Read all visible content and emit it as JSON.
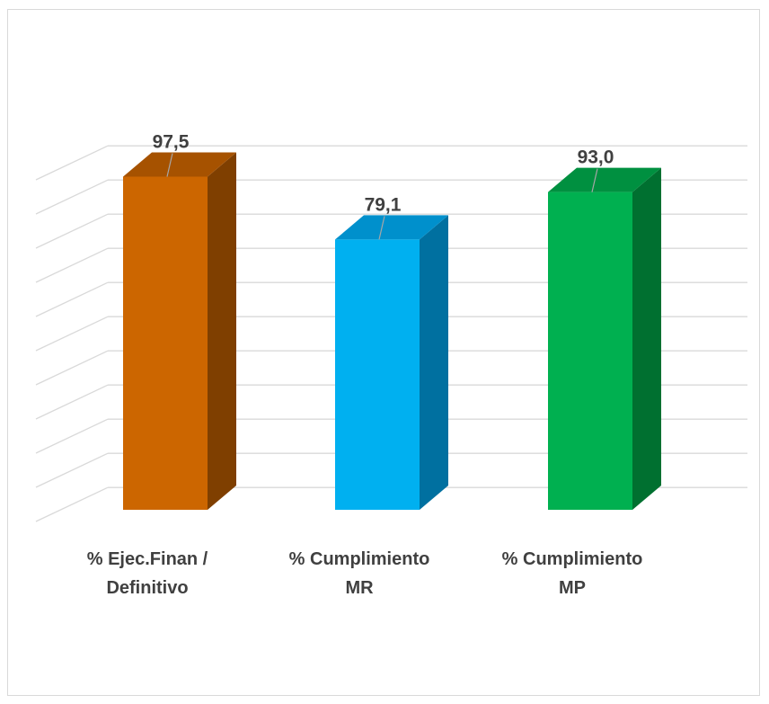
{
  "chart_data": {
    "type": "bar",
    "title": "",
    "xlabel": "",
    "ylabel": "",
    "categories": [
      [
        "% Ejec.Finan /",
        "Definitivo"
      ],
      [
        "% Cumplimiento",
        "MR"
      ],
      [
        "% Cumplimiento",
        "MP"
      ]
    ],
    "values": [
      97.5,
      79.1,
      93.0
    ],
    "data_labels": [
      "97,5",
      "79,1",
      "93,0"
    ],
    "ylim": [
      0,
      100
    ],
    "grid": true,
    "style_3d": true,
    "legend": "none",
    "colors": {
      "bars": [
        {
          "front": "#cc6600",
          "side": "#7f3f00",
          "top": "#a65200"
        },
        {
          "front": "#00b0f0",
          "side": "#0070a0",
          "top": "#0090cc"
        },
        {
          "front": "#00b050",
          "side": "#007030",
          "top": "#009040"
        }
      ],
      "grid": "#d9d9d9",
      "label_text": "#404040",
      "leader_line": "#a6a6a6"
    }
  }
}
